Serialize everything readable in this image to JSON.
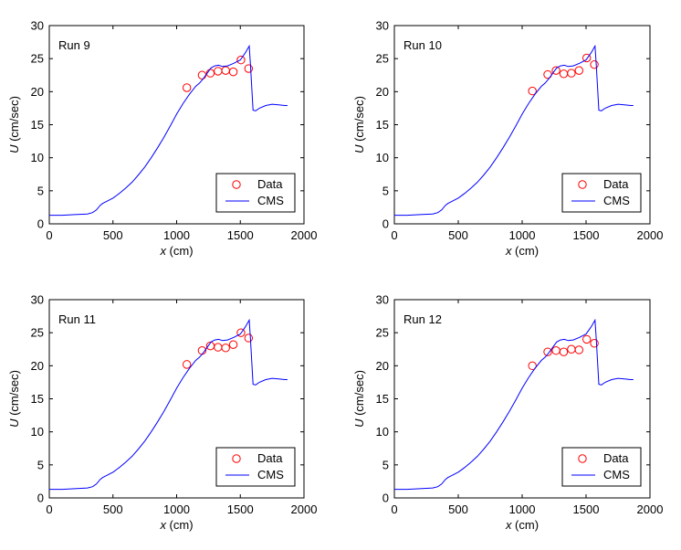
{
  "colors": {
    "data": "#ff0000",
    "cms": "#0000ff",
    "axes": "#000000"
  },
  "chart_data": [
    {
      "type": "line",
      "title": "Run 9",
      "xlabel_var": "x",
      "xlabel_unit": " (cm)",
      "ylabel_var": "U",
      "ylabel_unit": " (cm/sec)",
      "xlim": [
        0,
        2000
      ],
      "ylim": [
        0,
        30
      ],
      "xticks": [
        0,
        500,
        1000,
        1500,
        2000
      ],
      "yticks": [
        0,
        5,
        10,
        15,
        20,
        25,
        30
      ],
      "legend": {
        "position": "bottom-right",
        "entries": [
          "Data",
          "CMS"
        ]
      },
      "series": [
        {
          "name": "Data",
          "kind": "scatter",
          "marker": "circle",
          "x": [
            1080,
            1200,
            1265,
            1325,
            1385,
            1445,
            1505,
            1565
          ],
          "y": [
            20.6,
            22.5,
            22.8,
            23.1,
            23.2,
            23.0,
            24.8,
            23.5
          ]
        },
        {
          "name": "CMS",
          "kind": "line",
          "x": [
            0,
            100,
            200,
            300,
            340,
            370,
            400,
            420,
            450,
            500,
            550,
            600,
            650,
            700,
            750,
            800,
            850,
            900,
            950,
            1000,
            1050,
            1100,
            1150,
            1180,
            1210,
            1240,
            1270,
            1300,
            1330,
            1360,
            1400,
            1450,
            1500,
            1540,
            1570,
            1580,
            1600,
            1620,
            1650,
            1700,
            1750,
            1800,
            1850,
            1870
          ],
          "y": [
            1.3,
            1.3,
            1.4,
            1.5,
            1.7,
            2.1,
            2.8,
            3.1,
            3.4,
            3.9,
            4.6,
            5.4,
            6.3,
            7.4,
            8.6,
            10.0,
            11.5,
            13.1,
            14.8,
            16.6,
            18.2,
            19.6,
            20.8,
            21.3,
            22.0,
            22.8,
            23.6,
            23.9,
            24.0,
            23.8,
            23.9,
            24.3,
            24.8,
            25.9,
            26.9,
            24.0,
            17.2,
            17.1,
            17.5,
            17.9,
            18.1,
            18.0,
            17.9,
            17.9
          ]
        }
      ]
    },
    {
      "type": "line",
      "title": "Run 10",
      "xlabel_var": "x",
      "xlabel_unit": " (cm)",
      "ylabel_var": "U",
      "ylabel_unit": " (cm/sec)",
      "xlim": [
        0,
        2000
      ],
      "ylim": [
        0,
        30
      ],
      "xticks": [
        0,
        500,
        1000,
        1500,
        2000
      ],
      "yticks": [
        0,
        5,
        10,
        15,
        20,
        25,
        30
      ],
      "legend": {
        "position": "bottom-right",
        "entries": [
          "Data",
          "CMS"
        ]
      },
      "series": [
        {
          "name": "Data",
          "kind": "scatter",
          "marker": "circle",
          "x": [
            1080,
            1200,
            1265,
            1325,
            1385,
            1445,
            1505,
            1565
          ],
          "y": [
            20.1,
            22.6,
            23.2,
            22.7,
            22.8,
            23.2,
            25.1,
            24.1
          ]
        },
        {
          "name": "CMS",
          "kind": "line",
          "x": [
            0,
            100,
            200,
            300,
            340,
            370,
            400,
            420,
            450,
            500,
            550,
            600,
            650,
            700,
            750,
            800,
            850,
            900,
            950,
            1000,
            1050,
            1100,
            1150,
            1180,
            1210,
            1240,
            1270,
            1300,
            1330,
            1360,
            1400,
            1450,
            1500,
            1540,
            1570,
            1580,
            1600,
            1620,
            1650,
            1700,
            1750,
            1800,
            1850,
            1870
          ],
          "y": [
            1.3,
            1.3,
            1.4,
            1.5,
            1.7,
            2.1,
            2.8,
            3.1,
            3.4,
            3.9,
            4.6,
            5.4,
            6.3,
            7.4,
            8.6,
            10.0,
            11.5,
            13.1,
            14.8,
            16.6,
            18.2,
            19.6,
            20.8,
            21.3,
            22.0,
            22.8,
            23.6,
            23.9,
            24.0,
            23.8,
            23.9,
            24.3,
            24.8,
            25.9,
            26.9,
            24.0,
            17.2,
            17.1,
            17.5,
            17.9,
            18.1,
            18.0,
            17.9,
            17.9
          ]
        }
      ]
    },
    {
      "type": "line",
      "title": "Run 11",
      "xlabel_var": "x",
      "xlabel_unit": " (cm)",
      "ylabel_var": "U",
      "ylabel_unit": " (cm/sec)",
      "xlim": [
        0,
        2000
      ],
      "ylim": [
        0,
        30
      ],
      "xticks": [
        0,
        500,
        1000,
        1500,
        2000
      ],
      "yticks": [
        0,
        5,
        10,
        15,
        20,
        25,
        30
      ],
      "legend": {
        "position": "bottom-right",
        "entries": [
          "Data",
          "CMS"
        ]
      },
      "series": [
        {
          "name": "Data",
          "kind": "scatter",
          "marker": "circle",
          "x": [
            1080,
            1200,
            1265,
            1325,
            1385,
            1445,
            1505,
            1565
          ],
          "y": [
            20.2,
            22.3,
            23.0,
            22.8,
            22.7,
            23.2,
            25.0,
            24.2
          ]
        },
        {
          "name": "CMS",
          "kind": "line",
          "x": [
            0,
            100,
            200,
            300,
            340,
            370,
            400,
            420,
            450,
            500,
            550,
            600,
            650,
            700,
            750,
            800,
            850,
            900,
            950,
            1000,
            1050,
            1100,
            1150,
            1180,
            1210,
            1240,
            1270,
            1300,
            1330,
            1360,
            1400,
            1450,
            1500,
            1540,
            1570,
            1580,
            1600,
            1620,
            1650,
            1700,
            1750,
            1800,
            1850,
            1870
          ],
          "y": [
            1.3,
            1.3,
            1.4,
            1.5,
            1.7,
            2.1,
            2.8,
            3.1,
            3.4,
            3.9,
            4.6,
            5.4,
            6.3,
            7.4,
            8.6,
            10.0,
            11.5,
            13.1,
            14.8,
            16.6,
            18.2,
            19.6,
            20.8,
            21.3,
            22.0,
            22.8,
            23.6,
            23.9,
            24.0,
            23.8,
            23.9,
            24.3,
            24.8,
            25.9,
            26.9,
            24.0,
            17.2,
            17.1,
            17.5,
            17.9,
            18.1,
            18.0,
            17.9,
            17.9
          ]
        }
      ]
    },
    {
      "type": "line",
      "title": "Run 12",
      "xlabel_var": "x",
      "xlabel_unit": " (cm)",
      "ylabel_var": "U",
      "ylabel_unit": " (cm/sec)",
      "xlim": [
        0,
        2000
      ],
      "ylim": [
        0,
        30
      ],
      "xticks": [
        0,
        500,
        1000,
        1500,
        2000
      ],
      "yticks": [
        0,
        5,
        10,
        15,
        20,
        25,
        30
      ],
      "legend": {
        "position": "bottom-right",
        "entries": [
          "Data",
          "CMS"
        ]
      },
      "series": [
        {
          "name": "Data",
          "kind": "scatter",
          "marker": "circle",
          "x": [
            1080,
            1200,
            1265,
            1325,
            1385,
            1445,
            1505,
            1565
          ],
          "y": [
            20.0,
            22.1,
            22.3,
            22.1,
            22.5,
            22.4,
            24.0,
            23.4
          ]
        },
        {
          "name": "CMS",
          "kind": "line",
          "x": [
            0,
            100,
            200,
            300,
            340,
            370,
            400,
            420,
            450,
            500,
            550,
            600,
            650,
            700,
            750,
            800,
            850,
            900,
            950,
            1000,
            1050,
            1100,
            1150,
            1180,
            1210,
            1240,
            1270,
            1300,
            1330,
            1360,
            1400,
            1450,
            1500,
            1540,
            1570,
            1580,
            1600,
            1620,
            1650,
            1700,
            1750,
            1800,
            1850,
            1870
          ],
          "y": [
            1.3,
            1.3,
            1.4,
            1.5,
            1.7,
            2.1,
            2.8,
            3.1,
            3.4,
            3.9,
            4.6,
            5.4,
            6.3,
            7.4,
            8.6,
            10.0,
            11.5,
            13.1,
            14.8,
            16.6,
            18.2,
            19.6,
            20.8,
            21.3,
            22.0,
            22.8,
            23.6,
            23.9,
            24.0,
            23.8,
            23.9,
            24.3,
            24.8,
            25.9,
            26.9,
            24.0,
            17.2,
            17.1,
            17.5,
            17.9,
            18.1,
            18.0,
            17.9,
            17.9
          ]
        }
      ]
    }
  ]
}
